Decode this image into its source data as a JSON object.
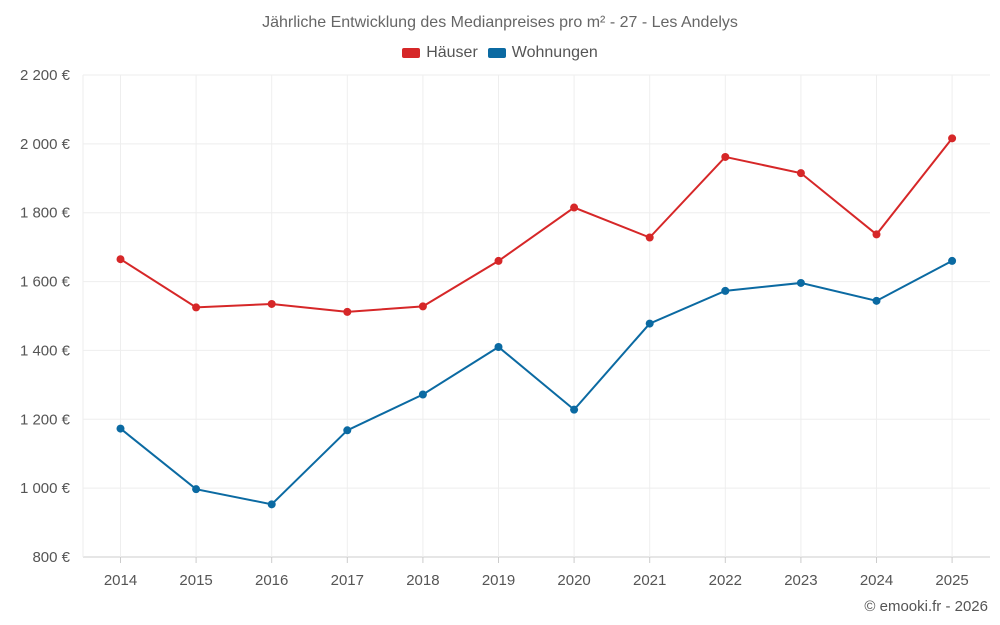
{
  "chart_data": {
    "type": "line",
    "title": "Jährliche Entwicklung des Medianpreises pro m² - 27 - Les Andelys",
    "categories": [
      "2014",
      "2015",
      "2016",
      "2017",
      "2018",
      "2019",
      "2020",
      "2021",
      "2022",
      "2023",
      "2024",
      "2025"
    ],
    "series": [
      {
        "name": "Häuser",
        "color": "#d62728",
        "values": [
          1665,
          1525,
          1535,
          1512,
          1528,
          1660,
          1815,
          1728,
          1962,
          1915,
          1737,
          2016
        ]
      },
      {
        "name": "Wohnungen",
        "color": "#0b6aa2",
        "values": [
          1173,
          997,
          953,
          1168,
          1272,
          1410,
          1228,
          1478,
          1573,
          1596,
          1544,
          1660
        ]
      }
    ],
    "ylim": [
      800,
      2200
    ],
    "yticks": [
      800,
      1000,
      1200,
      1400,
      1600,
      1800,
      2000,
      2200
    ],
    "ytick_labels": [
      "800 €",
      "1 000 €",
      "1 200 €",
      "1 400 €",
      "1 600 €",
      "1 800 €",
      "2 000 €",
      "2 200 €"
    ],
    "xlabel": "",
    "ylabel": "",
    "grid": true,
    "legend_position": "top-center"
  },
  "legend": {
    "houses": "Häuser",
    "apartments": "Wohnungen"
  },
  "footer": {
    "copyright": "© emooki.fr - 2026"
  }
}
